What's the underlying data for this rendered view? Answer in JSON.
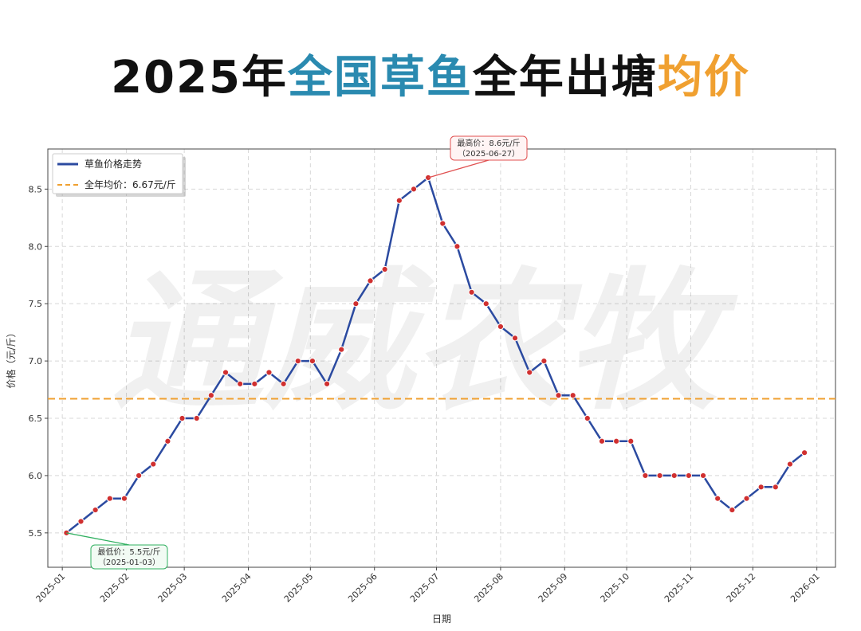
{
  "title": {
    "part1": "2025年",
    "part2": "全国草鱼",
    "part3": "全年出塘",
    "part4": "均价",
    "color_main": "#111111",
    "color_blue": "#2a8ab0",
    "color_orange": "#f0a030"
  },
  "watermark": "通威农牧",
  "chart_data": {
    "type": "line",
    "xlabel": "日期",
    "ylabel": "价格（元/斤）",
    "ylim": [
      5.2,
      8.85
    ],
    "yticks": [
      5.5,
      6.0,
      6.5,
      7.0,
      7.5,
      8.0,
      8.5
    ],
    "ytick_labels": [
      "5.5",
      "6.0",
      "6.5",
      "7.0",
      "7.5",
      "8.0",
      "8.5"
    ],
    "xlim": [
      "2024-12-25",
      "2026-01-10"
    ],
    "xticks": [
      "2025-01-01",
      "2025-02-01",
      "2025-03-01",
      "2025-04-01",
      "2025-05-01",
      "2025-06-01",
      "2025-07-01",
      "2025-08-01",
      "2025-09-01",
      "2025-10-01",
      "2025-11-01",
      "2025-12-01",
      "2026-01-01"
    ],
    "xtick_labels": [
      "2025-01",
      "2025-02",
      "2025-03",
      "2025-04",
      "2025-05",
      "2025-06",
      "2025-07",
      "2025-08",
      "2025-09",
      "2025-10",
      "2025-11",
      "2025-12",
      "2026-01"
    ],
    "grid": true,
    "legend_position": "top-left",
    "series": [
      {
        "name": "草鱼价格走势",
        "color": "#2b4aa0",
        "marker_color": "#d03030",
        "x": [
          "2025-01-03",
          "2025-01-10",
          "2025-01-17",
          "2025-01-24",
          "2025-01-31",
          "2025-02-07",
          "2025-02-14",
          "2025-02-21",
          "2025-02-28",
          "2025-03-07",
          "2025-03-14",
          "2025-03-21",
          "2025-03-28",
          "2025-04-04",
          "2025-04-11",
          "2025-04-18",
          "2025-04-25",
          "2025-05-02",
          "2025-05-09",
          "2025-05-16",
          "2025-05-23",
          "2025-05-30",
          "2025-06-06",
          "2025-06-13",
          "2025-06-20",
          "2025-06-27",
          "2025-07-04",
          "2025-07-11",
          "2025-07-18",
          "2025-07-25",
          "2025-08-01",
          "2025-08-08",
          "2025-08-15",
          "2025-08-22",
          "2025-08-29",
          "2025-09-05",
          "2025-09-12",
          "2025-09-19",
          "2025-09-26",
          "2025-10-03",
          "2025-10-10",
          "2025-10-17",
          "2025-10-24",
          "2025-10-31",
          "2025-11-07",
          "2025-11-14",
          "2025-11-21",
          "2025-11-28",
          "2025-12-05",
          "2025-12-12",
          "2025-12-19",
          "2025-12-26"
        ],
        "values": [
          5.5,
          5.6,
          5.7,
          5.8,
          5.8,
          6.0,
          6.1,
          6.3,
          6.5,
          6.5,
          6.7,
          6.9,
          6.8,
          6.8,
          6.9,
          6.8,
          7.0,
          7.0,
          6.8,
          7.1,
          7.5,
          7.7,
          7.8,
          8.4,
          8.5,
          8.6,
          8.2,
          8.0,
          7.6,
          7.5,
          7.3,
          7.2,
          6.9,
          7.0,
          6.7,
          6.7,
          6.5,
          6.3,
          6.3,
          6.3,
          6.0,
          6.0,
          6.0,
          6.0,
          6.0,
          5.8,
          5.7,
          5.8,
          5.9,
          5.9,
          6.1,
          6.2
        ]
      }
    ],
    "average": {
      "name": "全年均价：6.67元/斤",
      "value": 6.67,
      "color": "#f0a030"
    },
    "annotations": {
      "max": {
        "line1": "最高价：8.6元/斤",
        "line2": "（2025-06-27）",
        "x": "2025-06-27",
        "y": 8.6,
        "color": "#e05050"
      },
      "min": {
        "line1": "最低价：5.5元/斤",
        "line2": "（2025-01-03）",
        "x": "2025-01-03",
        "y": 5.5,
        "color": "#30b060"
      }
    }
  }
}
